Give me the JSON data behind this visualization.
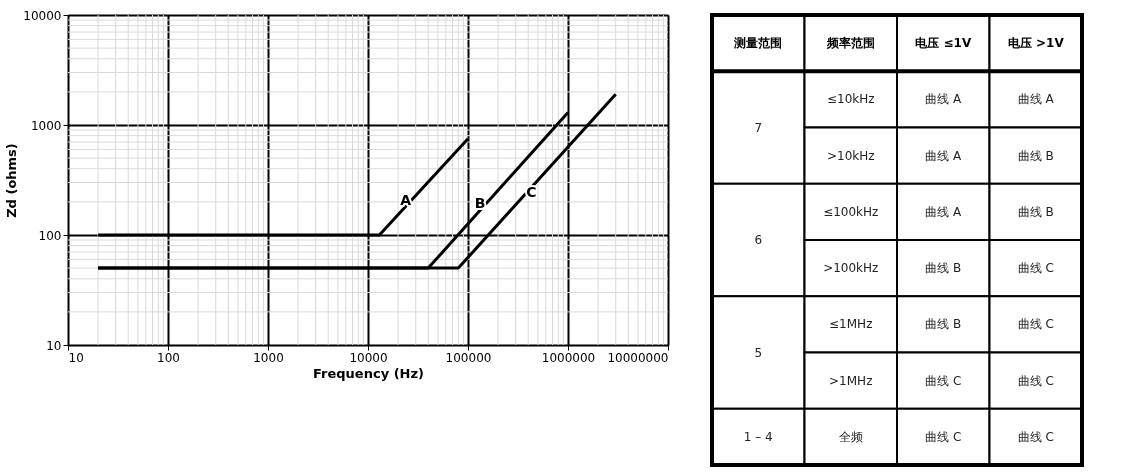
{
  "chart_data": [
    {
      "type": "line",
      "xlabel": "Frequency (Hz)",
      "ylabel": "Zd (ohms)",
      "log": "xy",
      "grid": true,
      "marker": "none",
      "line_style": "solid",
      "xlim": [
        10,
        10000000
      ],
      "xticks": [
        10,
        100,
        1000,
        10000,
        100000,
        1000000,
        10000000
      ],
      "ylim": [
        10,
        10000
      ],
      "yticks": [
        10,
        100,
        1000,
        10000
      ],
      "series": [
        {
          "name": "A",
          "color": "#000000",
          "x": [
            20,
            13000,
            100000
          ],
          "values": [
            100,
            100,
            750
          ]
        },
        {
          "name": "B",
          "color": "#000000",
          "x": [
            20,
            40000,
            1000000
          ],
          "values": [
            50,
            50,
            1300
          ]
        },
        {
          "name": "C",
          "color": "#000000",
          "x": [
            20,
            80000,
            3000000
          ],
          "values": [
            50,
            50,
            1900
          ]
        }
      ]
    },
    {
      "type": "other",
      "categories": [
        "测量范围",
        "频率范围",
        "电压 ≤1V",
        "电压 >1V"
      ],
      "y_categories": [
        "7",
        null,
        "6",
        null,
        "5",
        null,
        "1 – 4"
      ],
      "cell_labels": [
        [
          "≤10kHz",
          "曲线 A",
          "曲线 A"
        ],
        [
          ">10kHz",
          "曲线 A",
          "曲线 B"
        ],
        [
          "≤100kHz",
          "曲线 A",
          "曲线 B"
        ],
        [
          ">100kHz",
          "曲线 B",
          "曲线 C"
        ],
        [
          "≤1MHz",
          "曲线 B",
          "曲线 C"
        ],
        [
          ">1MHz",
          "曲线 C",
          "曲线 C"
        ],
        [
          "全频",
          "曲线 C",
          "曲线 C"
        ]
      ]
    }
  ]
}
